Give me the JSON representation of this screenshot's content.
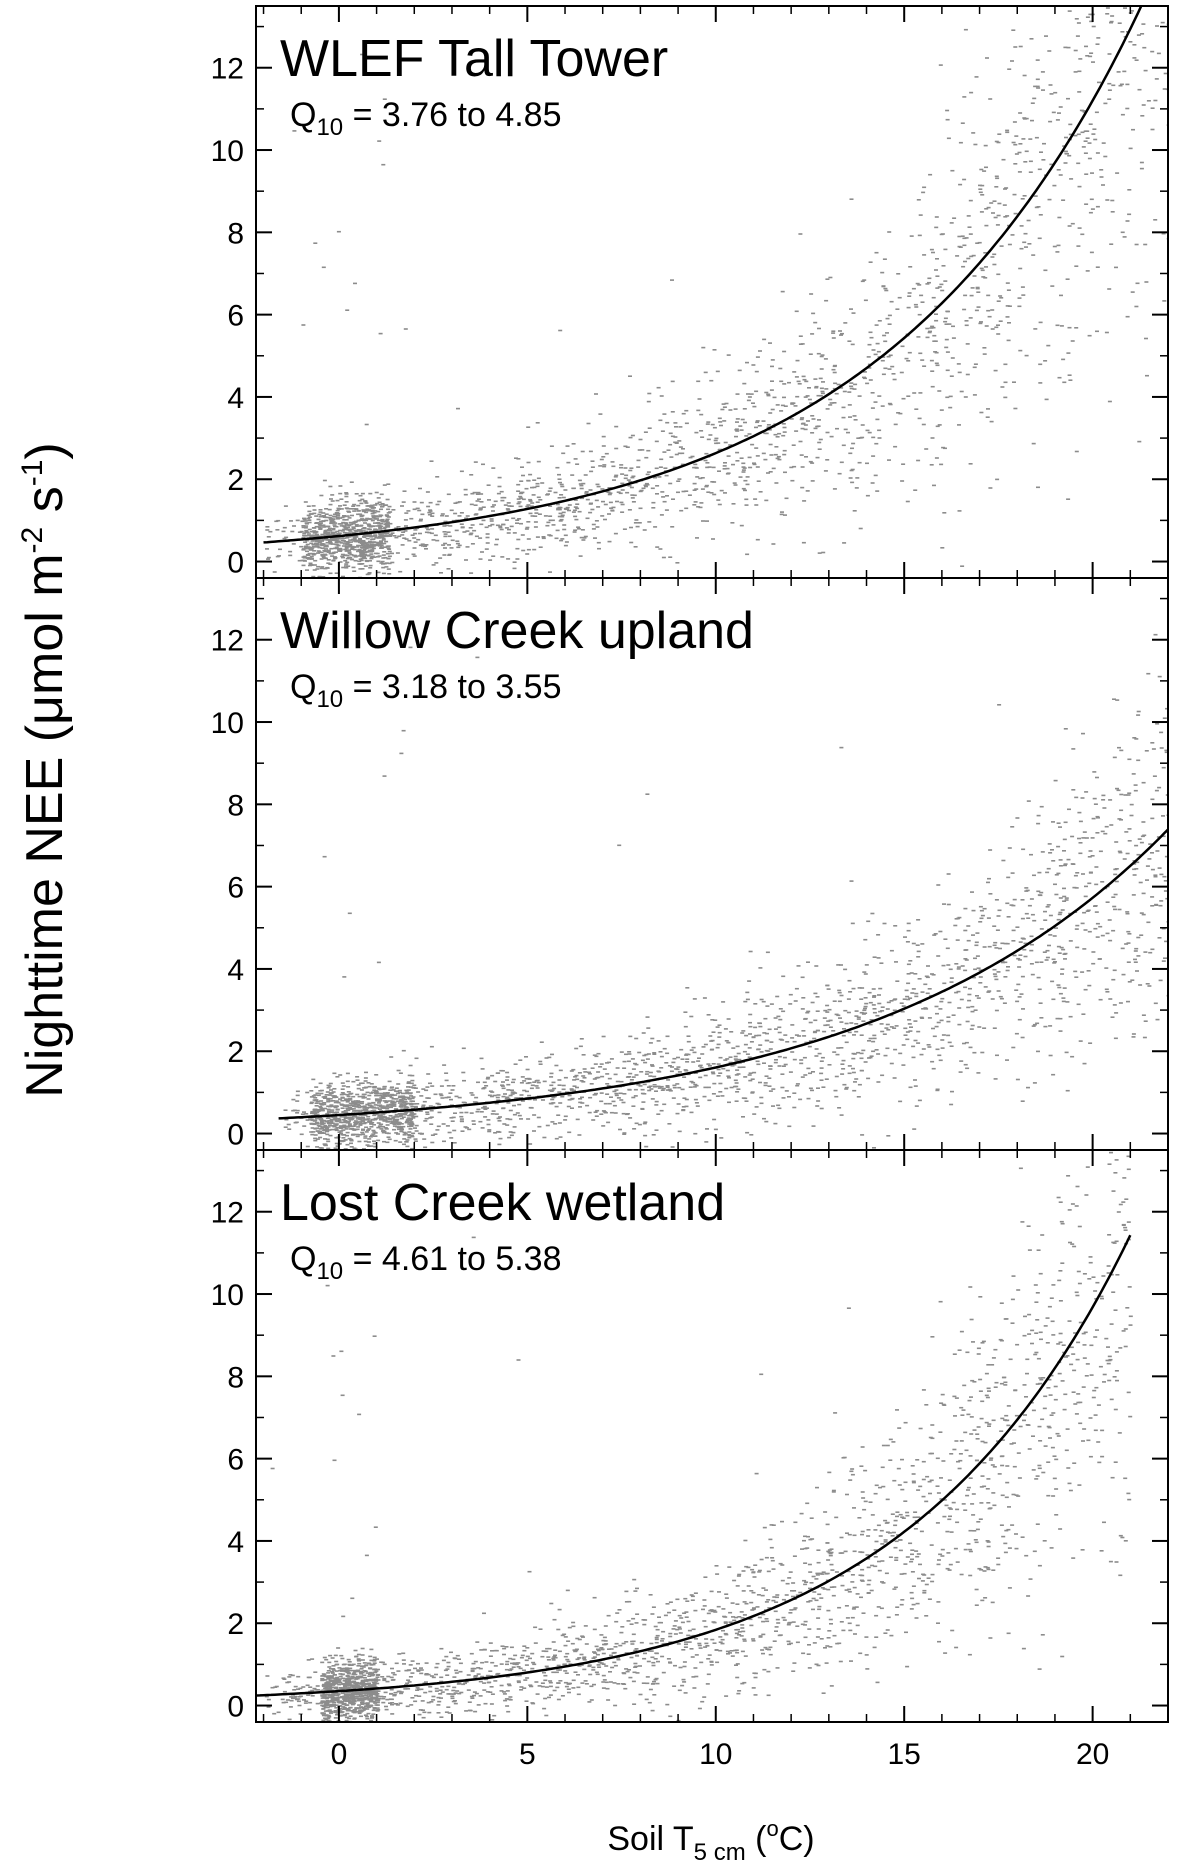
{
  "figure": {
    "y_axis_label": {
      "main": "Nighttime NEE (",
      "mu": "μ",
      "unit1": "mol m",
      "exp1": "-2",
      "unit2": " s",
      "exp2": "-1",
      "close": ")"
    },
    "x_axis_label": {
      "main": "Soil T",
      "sub": "5 cm",
      "open": " (",
      "deg": "o",
      "unit": "C)"
    }
  },
  "chart_data": [
    {
      "type": "scatter",
      "title": "WLEF Tall Tower",
      "q10": {
        "label": "Q",
        "sub": "10",
        "text": " = 3.76 to 4.85",
        "range": [
          3.76,
          4.85
        ]
      },
      "xlim": [
        -2.2,
        22
      ],
      "ylim": [
        -0.4,
        13.5
      ],
      "x_ticks": [
        0,
        5,
        10,
        15,
        20
      ],
      "y_ticks": [
        0,
        2,
        4,
        6,
        8,
        10,
        12
      ],
      "series": [
        {
          "kind": "scatter",
          "color": "#8c8c8c",
          "cluster_at_freezing": [
            -1,
            1.3
          ],
          "trend": {
            "a": 0.62,
            "b": 0.1447
          },
          "x_range": [
            -2,
            22
          ]
        },
        {
          "kind": "fit_curve",
          "color": "#000000",
          "a": 0.62,
          "b": 0.1447,
          "x_range": [
            -2,
            22
          ]
        }
      ]
    },
    {
      "type": "scatter",
      "title": "Willow Creek upland",
      "q10": {
        "label": "Q",
        "sub": "10",
        "text": " = 3.18 to 3.55",
        "range": [
          3.18,
          3.55
        ]
      },
      "xlim": [
        -2.2,
        22
      ],
      "ylim": [
        -0.4,
        13.5
      ],
      "x_ticks": [
        0,
        5,
        10,
        15,
        20
      ],
      "y_ticks": [
        0,
        2,
        4,
        6,
        8,
        10,
        12
      ],
      "series": [
        {
          "kind": "scatter",
          "color": "#8c8c8c",
          "cluster_at_freezing": [
            -0.8,
            2
          ],
          "trend": {
            "a": 0.45,
            "b": 0.1272
          },
          "x_range": [
            -1.5,
            22
          ]
        },
        {
          "kind": "fit_curve",
          "color": "#000000",
          "a": 0.45,
          "b": 0.1272,
          "x_range": [
            -1.6,
            22
          ]
        }
      ]
    },
    {
      "type": "scatter",
      "title": "Lost Creek wetland",
      "q10": {
        "label": "Q",
        "sub": "10",
        "text": " = 4.61 to 5.38",
        "range": [
          4.61,
          5.38
        ]
      },
      "xlim": [
        -2.2,
        22
      ],
      "ylim": [
        -0.4,
        13.5
      ],
      "x_ticks": [
        0,
        5,
        10,
        15,
        20
      ],
      "y_ticks": [
        0,
        2,
        4,
        6,
        8,
        10,
        12
      ],
      "series": [
        {
          "kind": "scatter",
          "color": "#8c8c8c",
          "cluster_at_freezing": [
            -0.5,
            1
          ],
          "trend": {
            "a": 0.35,
            "b": 0.166
          },
          "x_range": [
            -2,
            21
          ]
        },
        {
          "kind": "fit_curve",
          "color": "#000000",
          "a": 0.35,
          "b": 0.166,
          "x_range": [
            -2.2,
            21
          ]
        }
      ]
    }
  ]
}
